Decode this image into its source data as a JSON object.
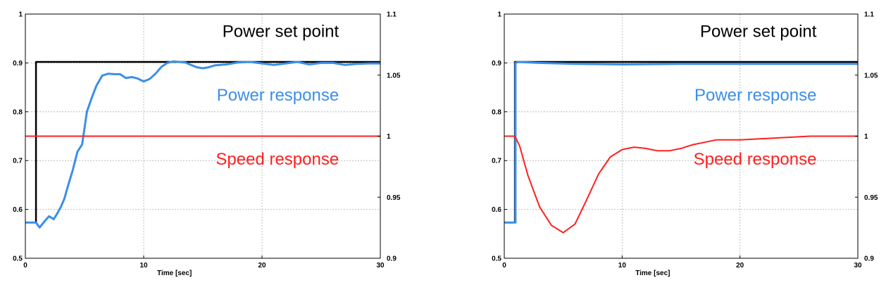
{
  "chart_data": [
    {
      "type": "line",
      "title": "",
      "xlabel": "Time  [sec]",
      "xlim": [
        0,
        30
      ],
      "ylim": [
        0.5,
        1
      ],
      "y2lim": [
        0.9,
        1.1
      ],
      "grid": true,
      "x_ticks": [
        "0",
        "10",
        "20",
        "30"
      ],
      "y_ticks": [
        "0.5",
        "0.6",
        "0.7",
        "0.8",
        "0.9",
        "1"
      ],
      "y2_ticks": [
        "0.9",
        "0.95",
        "1",
        "1.05",
        "1.1"
      ],
      "annotations": [
        {
          "text": "Power set point",
          "color": "#000000",
          "x": 26.5,
          "y": 0.953
        },
        {
          "text": "Power response",
          "color": "#3a8fea",
          "x": 26.5,
          "y": 0.823
        },
        {
          "text": "Speed response",
          "color": "#ff2020",
          "x": 26.5,
          "y": 0.692
        }
      ],
      "series": [
        {
          "color": "#000000",
          "axis": "left",
          "x": [
            0,
            0.9,
            0.9,
            30
          ],
          "y": [
            0.573,
            0.573,
            0.902,
            0.902
          ]
        },
        {
          "color": "#3a8fea",
          "axis": "left",
          "x": [
            0,
            0.9,
            1.2,
            1.6,
            2.0,
            2.4,
            2.7,
            3.0,
            3.3,
            3.6,
            4.0,
            4.4,
            4.8,
            5.2,
            5.6,
            6.0,
            6.5,
            7.0,
            7.5,
            8.0,
            8.5,
            9.0,
            9.5,
            10.0,
            10.5,
            11.0,
            11.5,
            12.0,
            12.5,
            13.0,
            13.5,
            14.0,
            14.5,
            15.0,
            15.5,
            16.0,
            17.0,
            18.0,
            19.0,
            20.0,
            21.0,
            22.0,
            23.0,
            24.0,
            25.0,
            26.0,
            27.0,
            28.0,
            29.0,
            30.0
          ],
          "y": [
            0.573,
            0.573,
            0.563,
            0.575,
            0.586,
            0.58,
            0.592,
            0.605,
            0.622,
            0.648,
            0.68,
            0.718,
            0.733,
            0.8,
            0.828,
            0.853,
            0.874,
            0.878,
            0.877,
            0.877,
            0.869,
            0.871,
            0.868,
            0.862,
            0.867,
            0.878,
            0.892,
            0.9,
            0.903,
            0.902,
            0.901,
            0.896,
            0.891,
            0.889,
            0.891,
            0.895,
            0.897,
            0.901,
            0.902,
            0.899,
            0.896,
            0.899,
            0.902,
            0.897,
            0.9,
            0.9,
            0.896,
            0.898,
            0.899,
            0.899
          ]
        },
        {
          "color": "#ff2020",
          "axis": "right",
          "x": [
            0,
            5,
            10,
            15,
            20,
            25,
            30
          ],
          "y": [
            1.0,
            1.0,
            1.0,
            1.0,
            1.0,
            1.0,
            1.0
          ]
        }
      ]
    },
    {
      "type": "line",
      "title": "",
      "xlabel": "Time  [sec]",
      "xlim": [
        0,
        30
      ],
      "ylim": [
        0.5,
        1
      ],
      "y2lim": [
        0.9,
        1.1
      ],
      "grid": true,
      "x_ticks": [
        "0",
        "10",
        "20",
        "30"
      ],
      "y_ticks": [
        "0.5",
        "0.6",
        "0.7",
        "0.8",
        "0.9",
        "1"
      ],
      "y2_ticks": [
        "0.9",
        "0.95",
        "1",
        "1.05",
        "1.1"
      ],
      "annotations": [
        {
          "text": "Power set point",
          "color": "#000000",
          "x": 26.5,
          "y": 0.953
        },
        {
          "text": "Power response",
          "color": "#3a8fea",
          "x": 26.5,
          "y": 0.823
        },
        {
          "text": "Speed response",
          "color": "#ff2020",
          "x": 26.5,
          "y": 0.692
        }
      ],
      "series": [
        {
          "color": "#000000",
          "axis": "left",
          "x": [
            0,
            0.9,
            0.9,
            30
          ],
          "y": [
            0.573,
            0.573,
            0.902,
            0.902
          ]
        },
        {
          "color": "#3a8fea",
          "axis": "left",
          "x": [
            0,
            0.95,
            0.95,
            1.2,
            3,
            6,
            10,
            15,
            20,
            25,
            30
          ],
          "y": [
            0.573,
            0.573,
            0.9,
            0.902,
            0.9,
            0.898,
            0.897,
            0.898,
            0.898,
            0.898,
            0.898
          ]
        },
        {
          "color": "#ff2020",
          "axis": "right",
          "x": [
            0,
            0.9,
            1.3,
            2,
            3,
            4,
            5,
            6,
            7,
            8,
            9,
            10,
            11,
            12,
            13,
            14,
            15,
            16,
            17,
            18,
            20,
            22,
            24,
            26,
            28,
            30
          ],
          "y": [
            1.0,
            1.0,
            0.992,
            0.968,
            0.942,
            0.927,
            0.921,
            0.928,
            0.948,
            0.969,
            0.983,
            0.989,
            0.991,
            0.99,
            0.988,
            0.988,
            0.99,
            0.993,
            0.995,
            0.997,
            0.997,
            0.998,
            0.999,
            1.0,
            1.0,
            1.0
          ]
        }
      ]
    }
  ]
}
